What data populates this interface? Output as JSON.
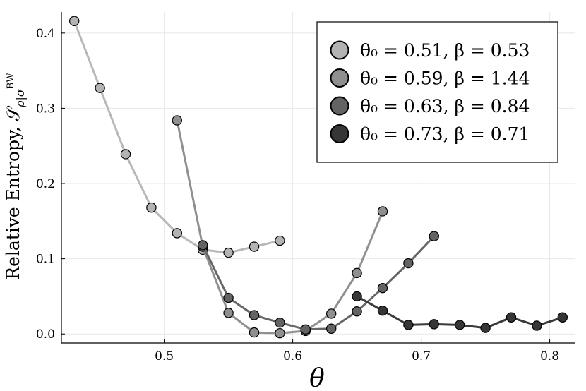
{
  "chart_data": {
    "type": "line",
    "title": "",
    "xlabel": "θ",
    "ylabel": "Relative Entropy, 𝒮",
    "ylabel_sub": "ρ|σ",
    "ylabel_sup": "BW",
    "xlim": [
      0.42,
      0.82
    ],
    "ylim": [
      -0.012,
      0.428
    ],
    "xticks": [
      0.5,
      0.6,
      0.7,
      0.8
    ],
    "xtick_labels": [
      "0.5",
      "0.6",
      "0.7",
      "0.8"
    ],
    "yticks": [
      0.0,
      0.1,
      0.2,
      0.3,
      0.4
    ],
    "ytick_labels": [
      "0.0",
      "0.1",
      "0.2",
      "0.3",
      "0.4"
    ],
    "grid": true,
    "legend_position": "top-right",
    "series": [
      {
        "name": "θ₀ = 0.51,  β = 0.53",
        "color": "#b3b3b3",
        "line_color": "#b8b8b8",
        "x": [
          0.43,
          0.45,
          0.47,
          0.49,
          0.51,
          0.53,
          0.55,
          0.57,
          0.59
        ],
        "y": [
          0.416,
          0.327,
          0.239,
          0.168,
          0.134,
          0.112,
          0.108,
          0.116,
          0.124
        ]
      },
      {
        "name": "θ₀ = 0.59,  β = 1.44",
        "color": "#8f8f8f",
        "line_color": "#909090",
        "x": [
          0.51,
          0.53,
          0.55,
          0.57,
          0.59,
          0.61,
          0.63,
          0.65,
          0.67
        ],
        "y": [
          0.284,
          0.116,
          0.028,
          0.002,
          0.001,
          0.004,
          0.027,
          0.081,
          0.163
        ]
      },
      {
        "name": "θ₀ = 0.63,  β = 0.84",
        "color": "#636363",
        "line_color": "#666666",
        "x": [
          0.53,
          0.55,
          0.57,
          0.59,
          0.61,
          0.63,
          0.65,
          0.67,
          0.69,
          0.71
        ],
        "y": [
          0.118,
          0.048,
          0.025,
          0.015,
          0.006,
          0.007,
          0.03,
          0.061,
          0.094,
          0.13
        ]
      },
      {
        "name": "θ₀ = 0.73,  β = 0.71",
        "color": "#363636",
        "line_color": "#3a3a3a",
        "x": [
          0.65,
          0.67,
          0.69,
          0.71,
          0.73,
          0.75,
          0.77,
          0.79,
          0.81
        ],
        "y": [
          0.05,
          0.031,
          0.012,
          0.013,
          0.012,
          0.008,
          0.022,
          0.011,
          0.022
        ]
      }
    ]
  }
}
